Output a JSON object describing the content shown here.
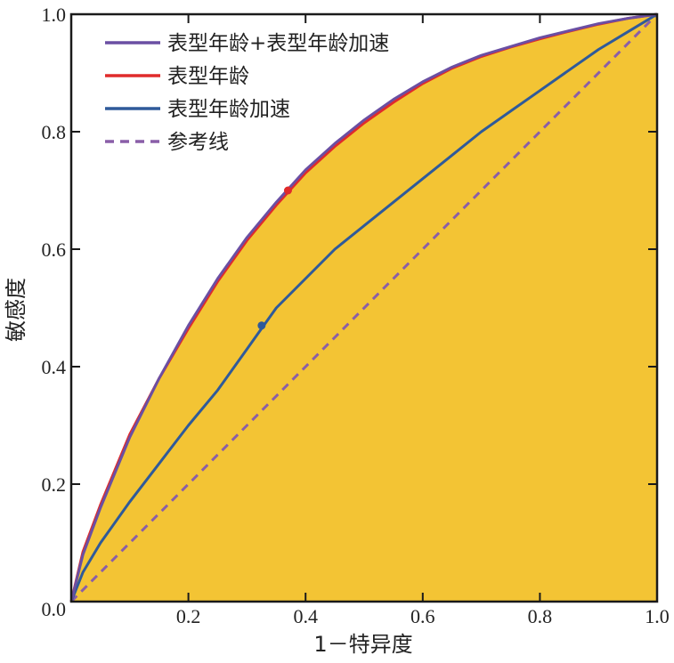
{
  "chart_data": {
    "type": "line",
    "title": "",
    "xlabel": "1－特异度",
    "ylabel": "敏感度",
    "xlim": [
      0,
      1
    ],
    "ylim": [
      0,
      1
    ],
    "x_ticks": [
      "0.2",
      "0.4",
      "0.6",
      "0.8",
      "1.0"
    ],
    "y_ticks": [
      "0.0",
      "0.2",
      "0.4",
      "0.6",
      "0.8",
      "1.0"
    ],
    "grid": false,
    "legend_position": "top-left",
    "background_fill": "#f3c434",
    "series": [
      {
        "name": "表型年龄+表型年龄加速",
        "color": "#6a4fa3",
        "style": "solid",
        "points": [
          [
            0,
            0
          ],
          [
            0.02,
            0.08
          ],
          [
            0.05,
            0.16
          ],
          [
            0.1,
            0.28
          ],
          [
            0.15,
            0.38
          ],
          [
            0.2,
            0.47
          ],
          [
            0.25,
            0.55
          ],
          [
            0.3,
            0.62
          ],
          [
            0.35,
            0.68
          ],
          [
            0.4,
            0.735
          ],
          [
            0.45,
            0.78
          ],
          [
            0.5,
            0.82
          ],
          [
            0.55,
            0.855
          ],
          [
            0.6,
            0.885
          ],
          [
            0.65,
            0.91
          ],
          [
            0.7,
            0.93
          ],
          [
            0.75,
            0.945
          ],
          [
            0.8,
            0.96
          ],
          [
            0.85,
            0.972
          ],
          [
            0.9,
            0.984
          ],
          [
            0.95,
            0.993
          ],
          [
            1,
            1
          ]
        ]
      },
      {
        "name": "表型年龄",
        "color": "#e02b2b",
        "style": "solid",
        "points": [
          [
            0,
            0
          ],
          [
            0.02,
            0.085
          ],
          [
            0.05,
            0.165
          ],
          [
            0.1,
            0.285
          ],
          [
            0.15,
            0.38
          ],
          [
            0.2,
            0.465
          ],
          [
            0.25,
            0.545
          ],
          [
            0.3,
            0.615
          ],
          [
            0.35,
            0.675
          ],
          [
            0.4,
            0.73
          ],
          [
            0.45,
            0.775
          ],
          [
            0.5,
            0.815
          ],
          [
            0.55,
            0.85
          ],
          [
            0.6,
            0.882
          ],
          [
            0.65,
            0.908
          ],
          [
            0.7,
            0.928
          ],
          [
            0.75,
            0.944
          ],
          [
            0.8,
            0.958
          ],
          [
            0.85,
            0.971
          ],
          [
            0.9,
            0.983
          ],
          [
            0.95,
            0.993
          ],
          [
            1,
            1
          ]
        ]
      },
      {
        "name": "表型年龄加速",
        "color": "#2f5a9a",
        "style": "solid",
        "points": [
          [
            0,
            0
          ],
          [
            0.02,
            0.05
          ],
          [
            0.05,
            0.1
          ],
          [
            0.1,
            0.17
          ],
          [
            0.15,
            0.235
          ],
          [
            0.2,
            0.3
          ],
          [
            0.25,
            0.36
          ],
          [
            0.3,
            0.43
          ],
          [
            0.35,
            0.5
          ],
          [
            0.4,
            0.55
          ],
          [
            0.45,
            0.6
          ],
          [
            0.5,
            0.64
          ],
          [
            0.55,
            0.68
          ],
          [
            0.6,
            0.72
          ],
          [
            0.65,
            0.76
          ],
          [
            0.7,
            0.8
          ],
          [
            0.75,
            0.835
          ],
          [
            0.8,
            0.87
          ],
          [
            0.85,
            0.905
          ],
          [
            0.9,
            0.94
          ],
          [
            0.95,
            0.97
          ],
          [
            1,
            1
          ]
        ]
      },
      {
        "name": "参考线",
        "color": "#8a5ea8",
        "style": "dashed",
        "points": [
          [
            0,
            0
          ],
          [
            1,
            1
          ]
        ]
      }
    ],
    "markers": [
      {
        "series": "表型年龄",
        "x": 0.37,
        "y": 0.7,
        "color": "#e02b2b"
      },
      {
        "series": "表型年龄加速",
        "x": 0.325,
        "y": 0.47,
        "color": "#2f5a9a"
      }
    ]
  }
}
